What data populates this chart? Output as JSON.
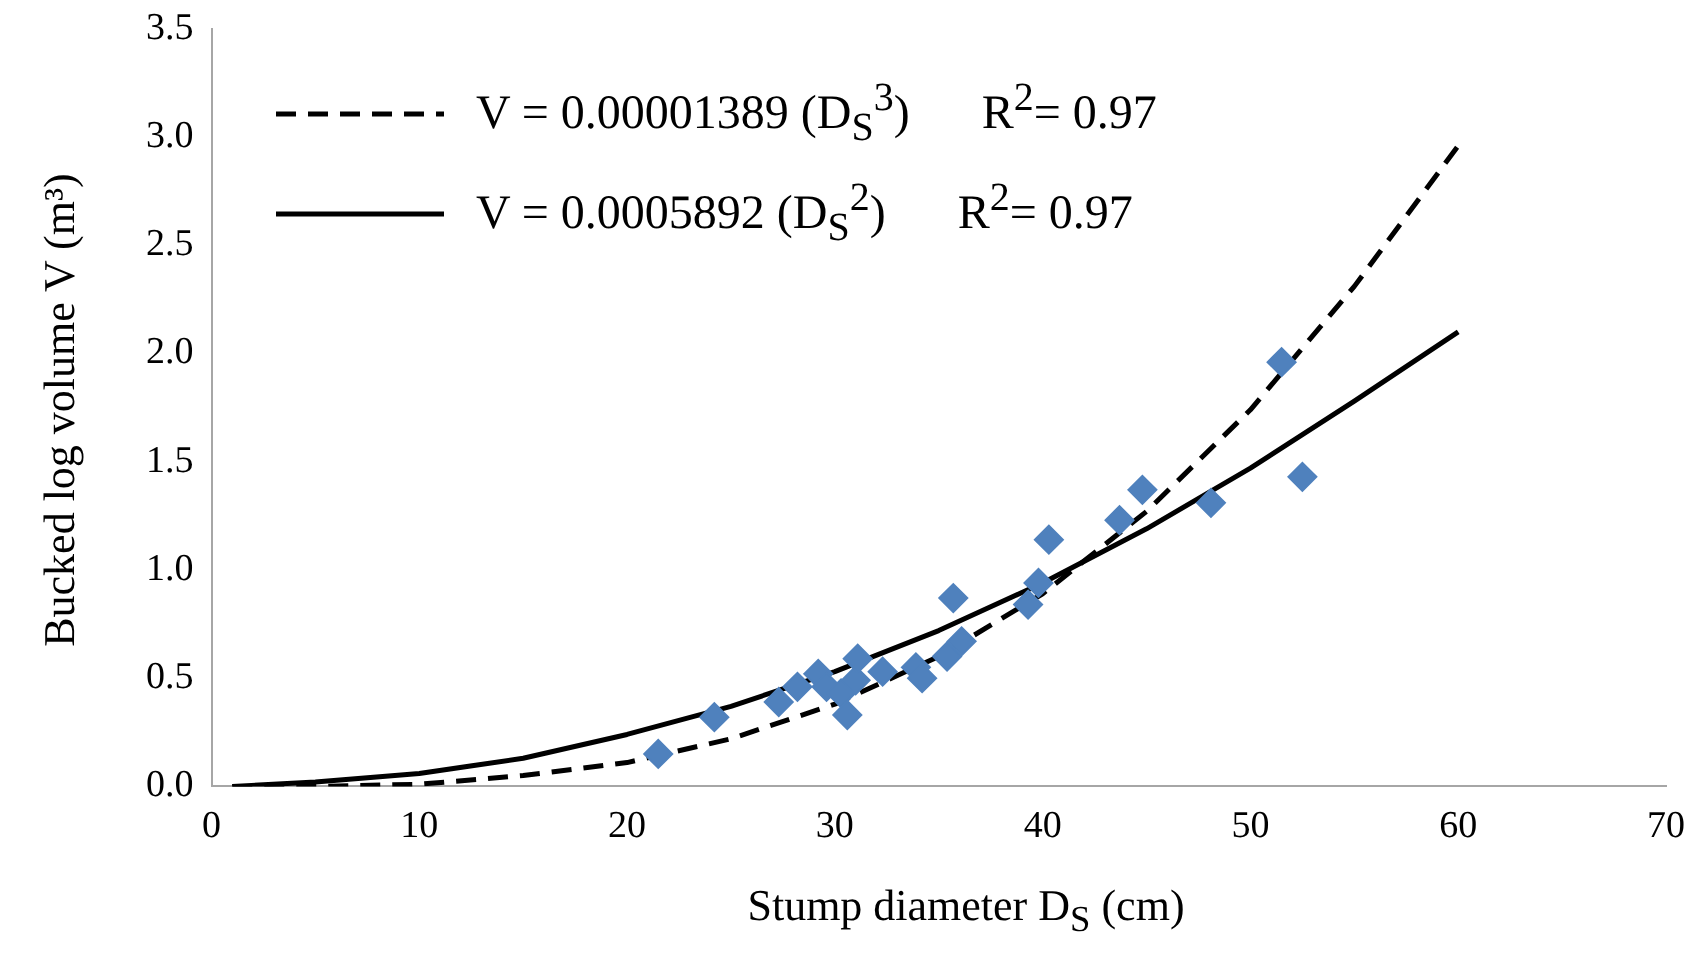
{
  "chart_data": {
    "type": "scatter",
    "xlabel": "Stump diameter D$_{S}$ (cm)",
    "ylabel": "Bucked log volume V (m³)",
    "xlim": [
      0,
      70
    ],
    "xticks": [
      0,
      10,
      20,
      30,
      40,
      50,
      60,
      70
    ],
    "ylim": [
      0,
      3.5
    ],
    "yticks": [
      {
        "value": 0,
        "label": "0.0"
      },
      0.5,
      {
        "value": 1,
        "label": "1.0"
      },
      1.5,
      {
        "value": 2,
        "label": "2.0"
      },
      2.5,
      {
        "value": 3,
        "label": "3.0"
      },
      3.5
    ],
    "legend": "top left",
    "series": [
      {
        "type": "scatter",
        "color": "#4f81bd",
        "marker": "diamond",
        "x": [
          21.5,
          24.2,
          27.3,
          28.2,
          29.2,
          29.6,
          30.3,
          30.6,
          31.0,
          31.1,
          32.3,
          33.9,
          34.2,
          35.4,
          36.1,
          35.7,
          39.3,
          39.8,
          40.3,
          43.7,
          44.8,
          48.1,
          51.5,
          52.5
        ],
        "values": [
          0.15,
          0.32,
          0.39,
          0.46,
          0.52,
          0.46,
          0.43,
          0.33,
          0.49,
          0.59,
          0.53,
          0.55,
          0.5,
          0.6,
          0.67,
          0.87,
          0.84,
          0.94,
          1.14,
          1.23,
          1.37,
          1.31,
          1.96,
          1.43
        ]
      },
      {
        "type": "line",
        "name": "V = 0.00001389 (D$_{S}$$^{3}$)      R$^{2}$= 0.97",
        "color": "#000000",
        "line_style": "dashed",
        "marker": "none",
        "x": [
          1,
          5,
          10,
          15,
          20,
          25,
          30,
          35,
          40,
          45,
          50,
          55,
          60
        ],
        "values": [
          0,
          0,
          0.01,
          0.05,
          0.11,
          0.22,
          0.38,
          0.6,
          0.89,
          1.27,
          1.74,
          2.31,
          2.96
        ]
      },
      {
        "type": "line",
        "name": "V = 0.0005892 (D$_{S}$$^{2}$)      R$^{2}$= 0.97",
        "color": "#000000",
        "line_style": "solid",
        "marker": "none",
        "x": [
          1,
          5,
          10,
          15,
          20,
          25,
          30,
          35,
          40,
          45,
          50,
          55,
          60
        ],
        "values": [
          0,
          0.02,
          0.06,
          0.13,
          0.24,
          0.37,
          0.53,
          0.72,
          0.94,
          1.19,
          1.47,
          1.78,
          2.1
        ]
      }
    ]
  }
}
